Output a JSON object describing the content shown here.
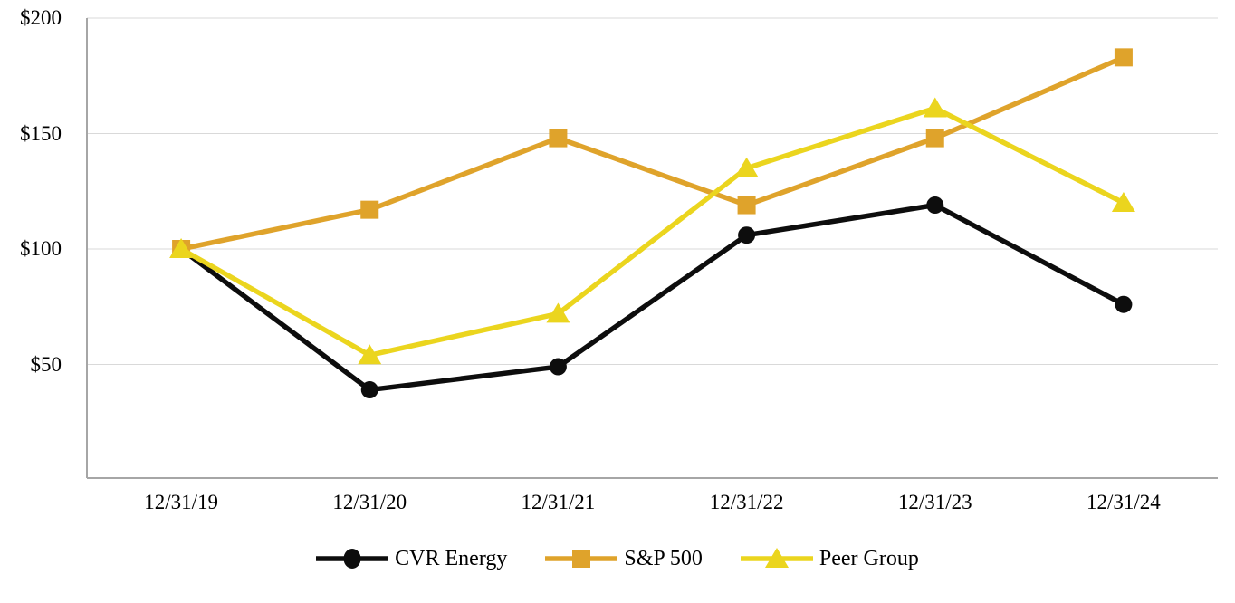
{
  "chart_data": {
    "type": "line",
    "title": "",
    "xlabel": "",
    "ylabel": "",
    "x_categories": [
      "12/31/19",
      "12/31/20",
      "12/31/21",
      "12/31/22",
      "12/31/23",
      "12/31/24"
    ],
    "y_tick_labels": [
      "$200",
      "$150",
      "$100",
      "$50"
    ],
    "y_tick_values": [
      200,
      150,
      100,
      50
    ],
    "ylim": [
      0,
      200
    ],
    "grid": "horizontal-only",
    "legend_position": "bottom-center",
    "series": [
      {
        "name": "CVR Energy",
        "marker": "circle",
        "color": "#0d0d0d",
        "values": [
          100,
          39,
          49,
          106,
          119,
          76
        ]
      },
      {
        "name": "S&P 500",
        "marker": "square",
        "color": "#dfa32b",
        "values": [
          100,
          117,
          148,
          119,
          148,
          183
        ]
      },
      {
        "name": "Peer Group",
        "marker": "triangle",
        "color": "#ebd51e",
        "values": [
          100,
          54,
          72,
          135,
          161,
          120
        ]
      }
    ]
  },
  "colors": {
    "background": "#ffffff",
    "gridline": "#d9d9d9",
    "axis_line": "#a6a6a6",
    "text": "#000000"
  }
}
